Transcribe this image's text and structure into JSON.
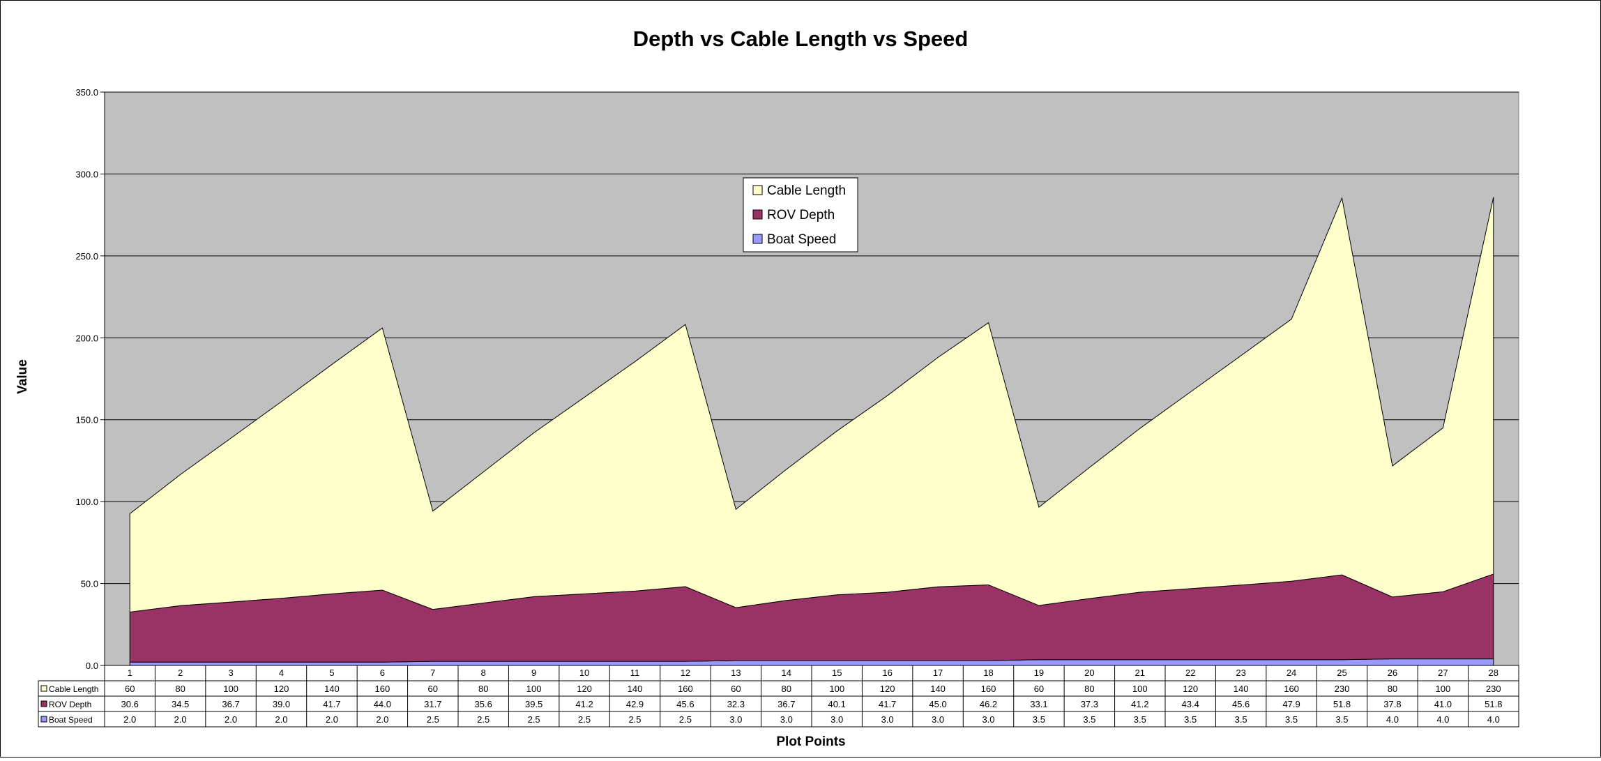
{
  "chart_data": {
    "type": "area",
    "stacked": true,
    "title": "Depth vs Cable Length vs Speed",
    "xlabel": "Plot Points",
    "ylabel": "Value",
    "ylim": [
      0,
      350
    ],
    "yticks": [
      "0.0",
      "50.0",
      "100.0",
      "150.0",
      "200.0",
      "250.0",
      "300.0",
      "350.0"
    ],
    "grid": true,
    "legend_position": "top-center",
    "plot_background": "#c0c0c0",
    "categories": [
      "1",
      "2",
      "3",
      "4",
      "5",
      "6",
      "7",
      "8",
      "9",
      "10",
      "11",
      "12",
      "13",
      "14",
      "15",
      "16",
      "17",
      "18",
      "19",
      "20",
      "21",
      "22",
      "23",
      "24",
      "25",
      "26",
      "27",
      "28"
    ],
    "series": [
      {
        "name": "Cable Length",
        "color": "#ffffcc",
        "values": [
          60,
          80,
          100,
          120,
          140,
          160,
          60,
          80,
          100,
          120,
          140,
          160,
          60,
          80,
          100,
          120,
          140,
          160,
          60,
          80,
          100,
          120,
          140,
          160,
          230,
          80,
          100,
          230
        ],
        "labels": [
          "60",
          "80",
          "100",
          "120",
          "140",
          "160",
          "60",
          "80",
          "100",
          "120",
          "140",
          "160",
          "60",
          "80",
          "100",
          "120",
          "140",
          "160",
          "60",
          "80",
          "100",
          "120",
          "140",
          "160",
          "230",
          "80",
          "100",
          "230"
        ]
      },
      {
        "name": "ROV Depth",
        "color": "#993366",
        "values": [
          30.6,
          34.5,
          36.7,
          39.0,
          41.7,
          44.0,
          31.7,
          35.6,
          39.5,
          41.2,
          42.9,
          45.6,
          32.3,
          36.7,
          40.1,
          41.7,
          45.0,
          46.2,
          33.1,
          37.3,
          41.2,
          43.4,
          45.6,
          47.9,
          51.8,
          37.8,
          41.0,
          51.8
        ],
        "labels": [
          "30.6",
          "34.5",
          "36.7",
          "39.0",
          "41.7",
          "44.0",
          "31.7",
          "35.6",
          "39.5",
          "41.2",
          "42.9",
          "45.6",
          "32.3",
          "36.7",
          "40.1",
          "41.7",
          "45.0",
          "46.2",
          "33.1",
          "37.3",
          "41.2",
          "43.4",
          "45.6",
          "47.9",
          "51.8",
          "37.8",
          "41.0",
          "51.8"
        ]
      },
      {
        "name": "Boat Speed",
        "color": "#9999ff",
        "values": [
          2.0,
          2.0,
          2.0,
          2.0,
          2.0,
          2.0,
          2.5,
          2.5,
          2.5,
          2.5,
          2.5,
          2.5,
          3.0,
          3.0,
          3.0,
          3.0,
          3.0,
          3.0,
          3.5,
          3.5,
          3.5,
          3.5,
          3.5,
          3.5,
          3.5,
          4.0,
          4.0,
          4.0
        ],
        "labels": [
          "2.0",
          "2.0",
          "2.0",
          "2.0",
          "2.0",
          "2.0",
          "2.5",
          "2.5",
          "2.5",
          "2.5",
          "2.5",
          "2.5",
          "3.0",
          "3.0",
          "3.0",
          "3.0",
          "3.0",
          "3.0",
          "3.5",
          "3.5",
          "3.5",
          "3.5",
          "3.5",
          "3.5",
          "3.5",
          "4.0",
          "4.0",
          "4.0"
        ]
      }
    ]
  }
}
